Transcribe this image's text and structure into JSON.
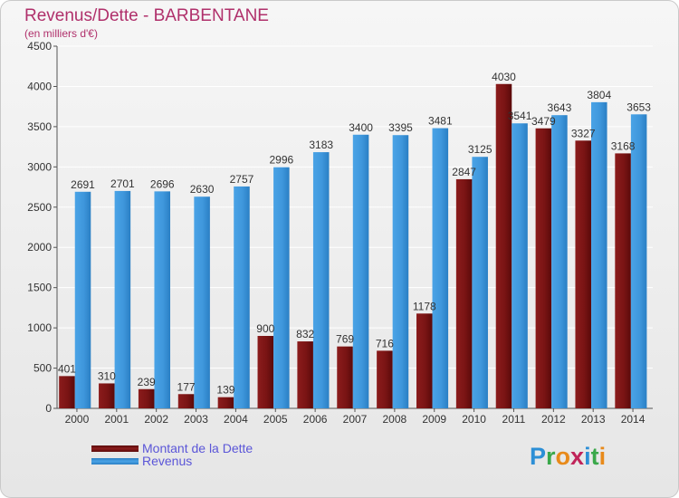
{
  "header": {
    "title": "Revenus/Dette - BARBENTANE",
    "subtitle": "(en milliers d'€)"
  },
  "legend": {
    "debt_label": "Montant de la Dette",
    "revenue_label": "Revenus"
  },
  "logo": {
    "text": "Proxiti",
    "letter_colors": [
      "#2c8fd6",
      "#3aa84a",
      "#e88a1a",
      "#c0245a",
      "#2c8fd6",
      "#3aa84a",
      "#e88a1a"
    ]
  },
  "colors": {
    "debt": "#8b1c1c",
    "debt_dark": "#5a0a0a",
    "revenue": "#4aa3e6",
    "revenue_dark": "#2a7fc4",
    "grid": "#ffffff",
    "axis_text": "#333333",
    "accent": "#b0306b"
  },
  "chart_data": {
    "type": "bar",
    "title": "Revenus/Dette - BARBENTANE",
    "subtitle": "(en milliers d'€)",
    "xlabel": "",
    "ylabel": "",
    "ylim": [
      0,
      4500
    ],
    "yticks": [
      0,
      500,
      1000,
      1500,
      2000,
      2500,
      3000,
      3500,
      4000,
      4500
    ],
    "grid": true,
    "legend_position": "bottom-left",
    "categories": [
      "2000",
      "2001",
      "2002",
      "2003",
      "2004",
      "2005",
      "2006",
      "2007",
      "2008",
      "2009",
      "2010",
      "2011",
      "2012",
      "2013",
      "2014"
    ],
    "series": [
      {
        "name": "Montant de la Dette",
        "values": [
          401,
          310,
          239,
          177,
          139,
          900,
          832,
          769,
          716,
          1178,
          2847,
          4030,
          3479,
          3327,
          3168
        ],
        "labels": [
          "401",
          "310",
          "239",
          "177",
          "139",
          "900",
          "832",
          "769",
          "716",
          "1178",
          "2847",
          "4030",
          "3479",
          "3327",
          "3168"
        ]
      },
      {
        "name": "Revenus",
        "values": [
          2691,
          2701,
          2696,
          2630,
          2757,
          2996,
          3183,
          3400,
          3395,
          3481,
          3125,
          3541,
          3643,
          3804,
          3653
        ],
        "labels": [
          "2691",
          "2701",
          "2696",
          "2630",
          "2757",
          "2996",
          "3183",
          "3400",
          "3395",
          "3481",
          "3125",
          "3541",
          "3643",
          "3804",
          "3653"
        ]
      }
    ]
  }
}
